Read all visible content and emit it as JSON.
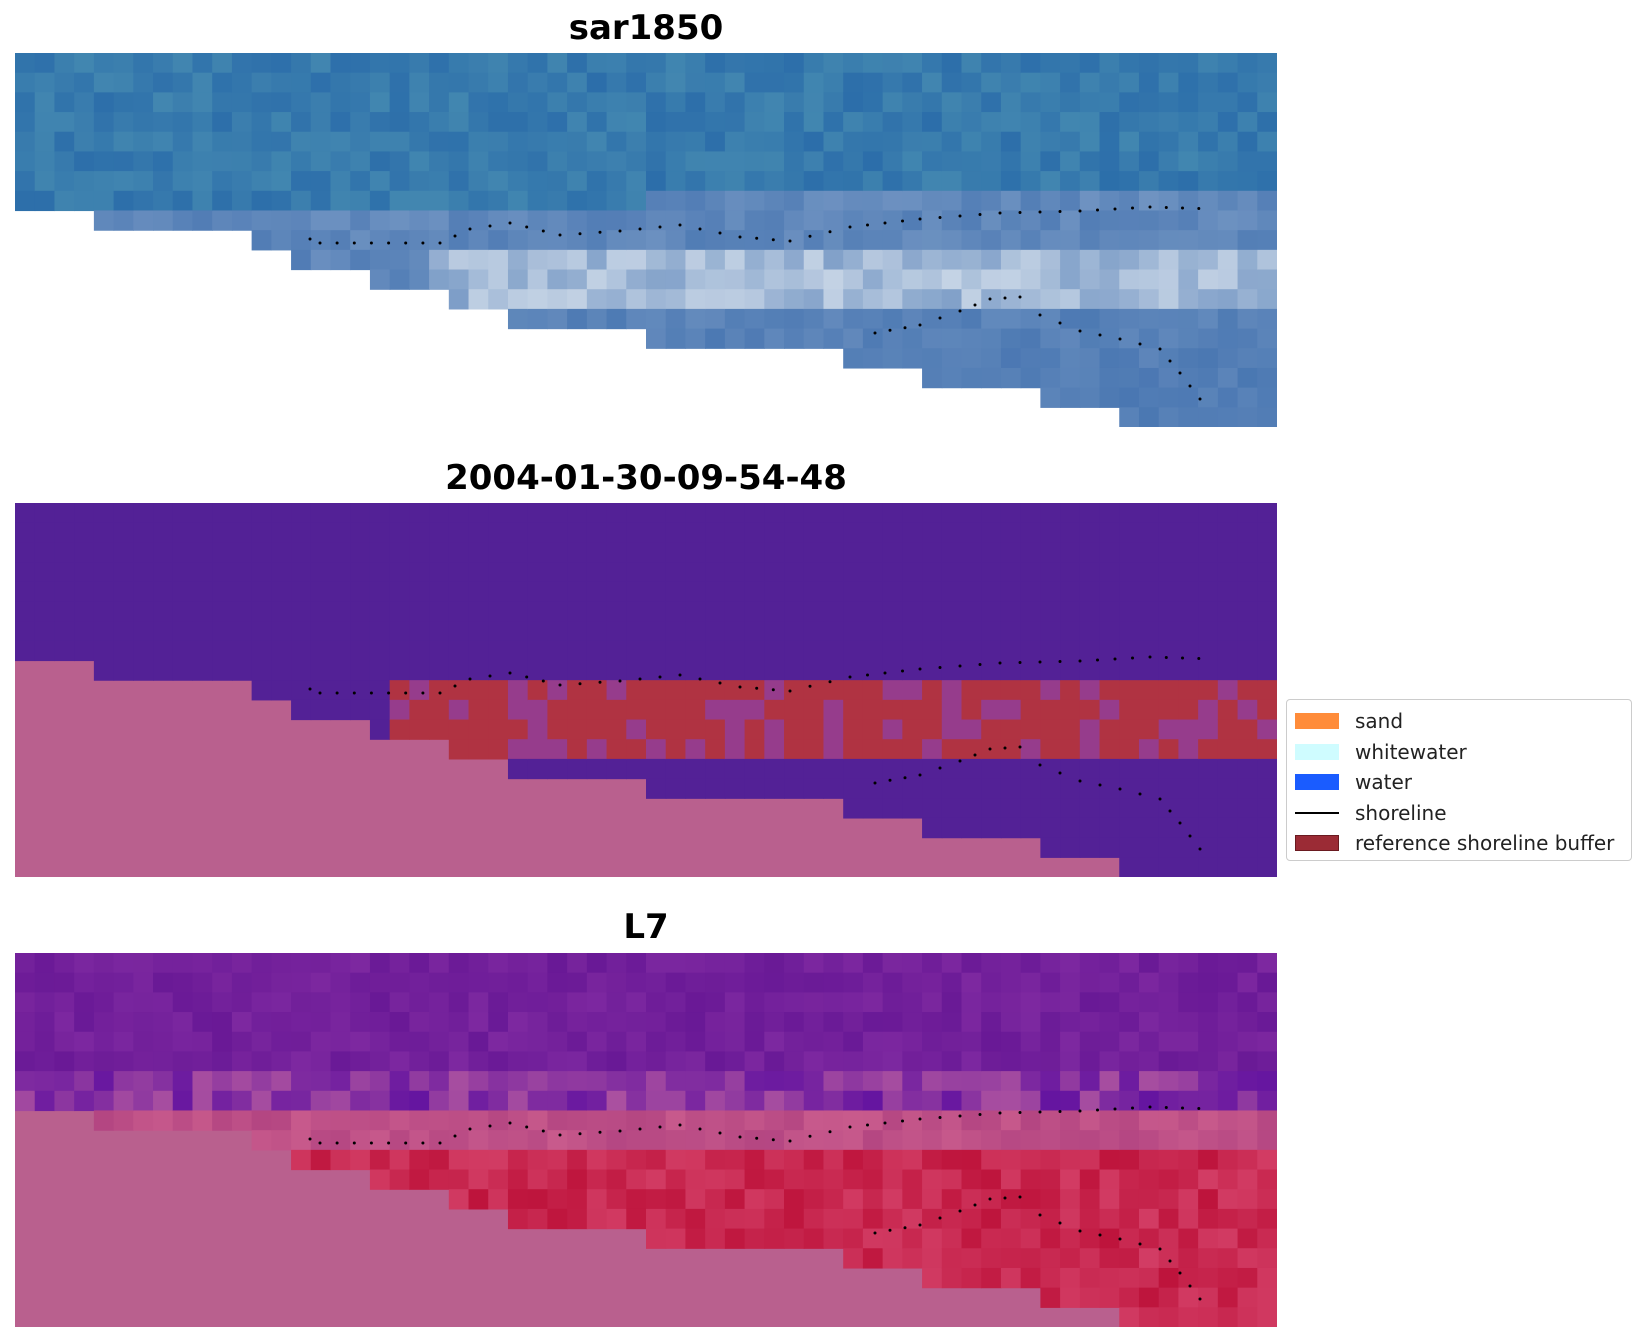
{
  "panels": [
    {
      "title": "sar1850"
    },
    {
      "title": "2004-01-30-09-54-48"
    },
    {
      "title": "L7"
    }
  ],
  "legend": {
    "items": [
      {
        "label": "sand",
        "color": "#ff8c3a",
        "kind": "patch"
      },
      {
        "label": "whitewater",
        "color": "#cffcff",
        "kind": "patch"
      },
      {
        "label": "water",
        "color": "#1a5cff",
        "kind": "patch"
      },
      {
        "label": "shoreline",
        "color": "#000000",
        "kind": "line"
      },
      {
        "label": "reference shoreline buffer",
        "color": "#9b2b35",
        "kind": "patch"
      }
    ]
  }
}
